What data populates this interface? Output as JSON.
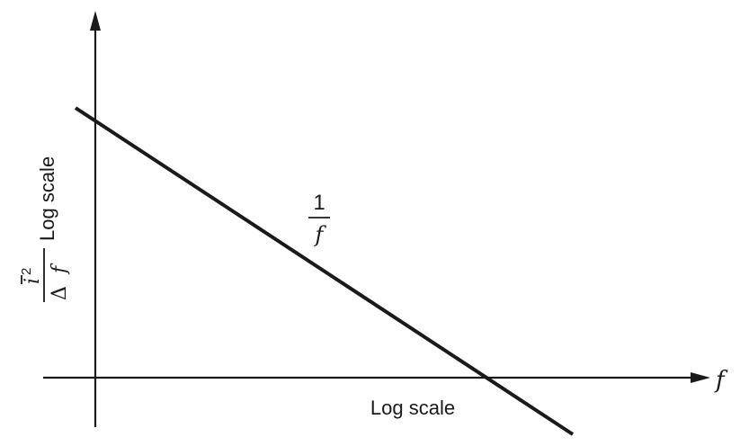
{
  "chart_data": {
    "type": "line",
    "x_scale": "log",
    "y_scale": "log",
    "grid": false,
    "xlabel": "Log scale",
    "x_axis_symbol": "f",
    "ylabel": "Log scale",
    "y_axis_symbol": {
      "numerator": "i",
      "superscript": "2",
      "denominator_delta": "Δ",
      "denominator_var": "f"
    },
    "series_label": {
      "numerator": "1",
      "denominator": "f"
    },
    "series": [
      {
        "slope_decades_per_decade": -1
      }
    ]
  }
}
